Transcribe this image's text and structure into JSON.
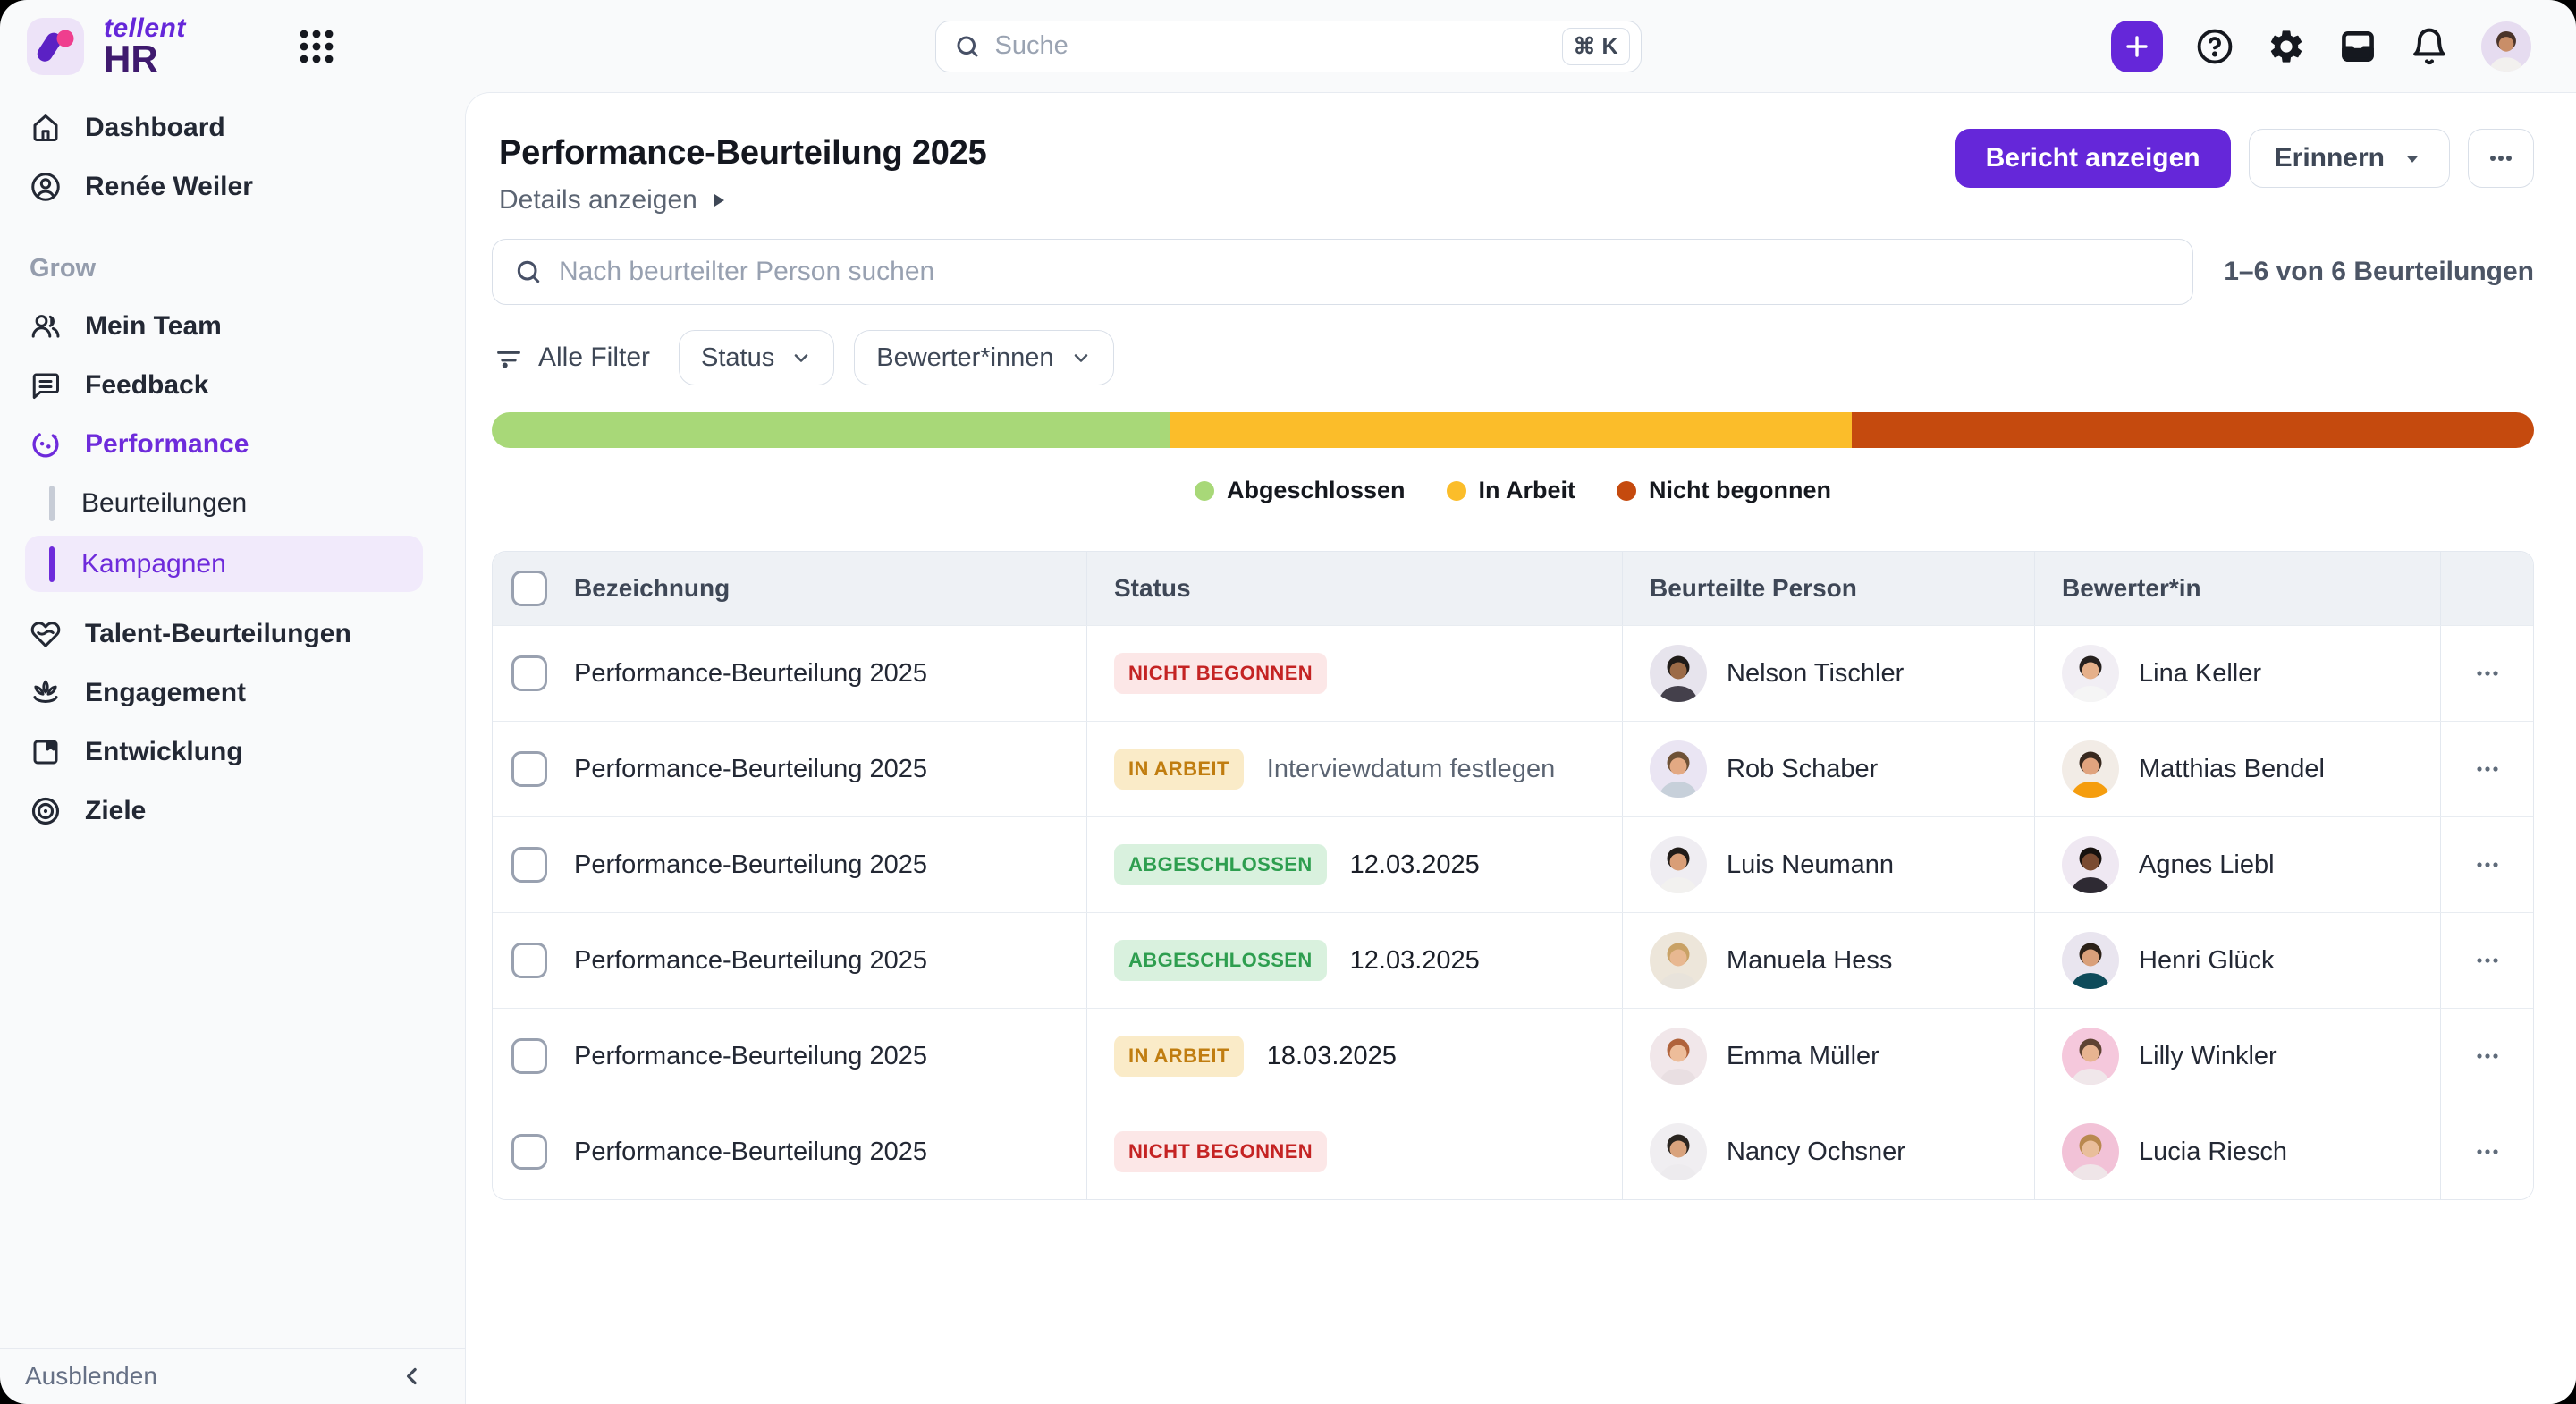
{
  "topbar": {
    "brand": "tellent",
    "product": "HR",
    "search_placeholder": "Suche",
    "shortcut": "⌘ K",
    "avatar_colors": {
      "bg": "#E6DCF0",
      "hair": "#4A342A",
      "skin": "#C98E68",
      "shirt": "#F2F0EE"
    }
  },
  "sidebar": {
    "primary": [
      {
        "icon": "home-icon",
        "label": "Dashboard"
      },
      {
        "icon": "user-circle-icon",
        "label": "Renée Weiler"
      }
    ],
    "section": "Grow",
    "grow": [
      {
        "icon": "users-icon",
        "label": "Mein Team"
      },
      {
        "icon": "feedback-icon",
        "label": "Feedback"
      },
      {
        "icon": "performance-icon",
        "label": "Performance"
      }
    ],
    "performance_children": [
      {
        "label": "Beurteilungen",
        "selected": false
      },
      {
        "label": "Kampagnen",
        "selected": true
      }
    ],
    "tools": [
      {
        "icon": "talent-icon",
        "label": "Talent-Beurteilungen"
      },
      {
        "icon": "engagement-icon",
        "label": "Engagement"
      },
      {
        "icon": "development-icon",
        "label": "Entwicklung"
      },
      {
        "icon": "goals-icon",
        "label": "Ziele"
      }
    ],
    "collapse_label": "Ausblenden"
  },
  "header": {
    "title": "Performance-Beurteilung 2025",
    "details_link": "Details anzeigen",
    "report_button": "Bericht anzeigen",
    "remind_button": "Erinnern"
  },
  "toolbar": {
    "search_placeholder": "Nach beurteilter Person suchen",
    "count": "1–6 von 6 Beurteilungen",
    "all_filters": "Alle Filter",
    "filters": [
      {
        "label": "Status"
      },
      {
        "label": "Bewerter*innen"
      }
    ]
  },
  "progress": {
    "segments": [
      {
        "label": "Abgeschlossen",
        "color": "#A8D878",
        "pct": 33.2
      },
      {
        "label": "In Arbeit",
        "color": "#FBBD2A",
        "pct": 33.4
      },
      {
        "label": "Nicht begonnen",
        "color": "#C54A0E",
        "pct": 33.4
      }
    ]
  },
  "table": {
    "columns": [
      "Bezeichnung",
      "Status",
      "Beurteilte Person",
      "Bewerter*in"
    ],
    "status_colors": {
      "not_started": {
        "text": "#C42323",
        "bg": "#FCE7E7"
      },
      "in_progress": {
        "text": "#C07D10",
        "bg": "#FAEBC8"
      },
      "done": {
        "text": "#2E9E4F",
        "bg": "#D9F1DE"
      }
    },
    "rows": [
      {
        "name": "Performance-Beurteilung 2025",
        "status_label": "NICHT BEGONNEN",
        "status_key": "not_started",
        "extra": "",
        "extra_style": "muted",
        "person": "Nelson Tischler",
        "person_avatar": {
          "bg": "#E7E4ED",
          "hair": "#1F1B18",
          "skin": "#9C6B47",
          "shirt": "#44404B"
        },
        "reviewer": "Lina Keller",
        "reviewer_avatar": {
          "bg": "#F1EEF4",
          "hair": "#26211F",
          "skin": "#E5B08A",
          "shirt": "#F5F5F5"
        }
      },
      {
        "name": "Performance-Beurteilung 2025",
        "status_label": "IN ARBEIT",
        "status_key": "in_progress",
        "extra": "Interviewdatum festlegen",
        "extra_style": "muted",
        "person": "Rob Schaber",
        "person_avatar": {
          "bg": "#EAE5F3",
          "hair": "#6E5136",
          "skin": "#E3A983",
          "shirt": "#C7D0DA"
        },
        "reviewer": "Matthias Bendel",
        "reviewer_avatar": {
          "bg": "#F2ECE6",
          "hair": "#38291F",
          "skin": "#E0A37E",
          "shirt": "#F59D0E"
        }
      },
      {
        "name": "Performance-Beurteilung 2025",
        "status_label": "ABGESCHLOSSEN",
        "status_key": "done",
        "extra": "12.03.2025",
        "extra_style": "dark",
        "person": "Luis Neumann",
        "person_avatar": {
          "bg": "#EFEDF2",
          "hair": "#211C19",
          "skin": "#D99E77",
          "shirt": "#F2F1EF"
        },
        "reviewer": "Agnes Liebl",
        "reviewer_avatar": {
          "bg": "#EFE8F2",
          "hair": "#17120F",
          "skin": "#7A4B32",
          "shirt": "#2E2A33"
        }
      },
      {
        "name": "Performance-Beurteilung 2025",
        "status_label": "ABGESCHLOSSEN",
        "status_key": "done",
        "extra": "12.03.2025",
        "extra_style": "dark",
        "person": "Manuela Hess",
        "person_avatar": {
          "bg": "#EDE6DA",
          "hair": "#C9A266",
          "skin": "#E8B891",
          "shirt": "#E8E3DB"
        },
        "reviewer": "Henri Glück",
        "reviewer_avatar": {
          "bg": "#E9E5EF",
          "hair": "#2B2118",
          "skin": "#D9A07A",
          "shirt": "#0E4B5A"
        }
      },
      {
        "name": "Performance-Beurteilung 2025",
        "status_label": "IN ARBEIT",
        "status_key": "in_progress",
        "extra": "18.03.2025",
        "extra_style": "dark",
        "person": "Emma Müller",
        "person_avatar": {
          "bg": "#F1E7EA",
          "hair": "#B0633B",
          "skin": "#EDBD9A",
          "shirt": "#E9DFE2"
        },
        "reviewer": "Lilly Winkler",
        "reviewer_avatar": {
          "bg": "#F5C8DC",
          "hair": "#5E4333",
          "skin": "#E7B491",
          "shirt": "#F0E7EA"
        }
      },
      {
        "name": "Performance-Beurteilung 2025",
        "status_label": "NICHT BEGONNEN",
        "status_key": "not_started",
        "extra": "",
        "extra_style": "muted",
        "person": "Nancy Ochsner",
        "person_avatar": {
          "bg": "#F0EEF1",
          "hair": "#2A2520",
          "skin": "#D9A37D",
          "shirt": "#EDEBEE"
        },
        "reviewer": "Lucia Riesch",
        "reviewer_avatar": {
          "bg": "#F2C2D7",
          "hair": "#B9894F",
          "skin": "#E9BE9B",
          "shirt": "#EFE5E8"
        }
      }
    ]
  },
  "colors": {
    "accent_purple": "#6527D9",
    "brand_dark_purple": "#3F1A6E",
    "selected_nav_bg": "#F1EAFB",
    "chrome_bg": "#F9FAFB",
    "card_border": "#E7EBF1"
  }
}
